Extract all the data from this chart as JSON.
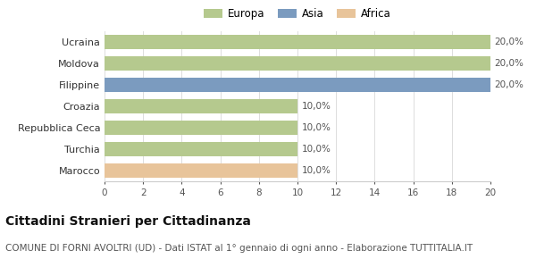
{
  "categories": [
    "Ucraina",
    "Moldova",
    "Filippine",
    "Croazia",
    "Repubblica Ceca",
    "Turchia",
    "Marocco"
  ],
  "values": [
    20,
    20,
    20,
    10,
    10,
    10,
    10
  ],
  "colors": [
    "#b5c98e",
    "#b5c98e",
    "#7b9bbf",
    "#b5c98e",
    "#b5c98e",
    "#b5c98e",
    "#e8c49a"
  ],
  "labels": [
    "20,0%",
    "20,0%",
    "20,0%",
    "10,0%",
    "10,0%",
    "10,0%",
    "10,0%"
  ],
  "legend": [
    {
      "label": "Europa",
      "color": "#b5c98e"
    },
    {
      "label": "Asia",
      "color": "#7b9bbf"
    },
    {
      "label": "Africa",
      "color": "#e8c49a"
    }
  ],
  "xlim": [
    0,
    20
  ],
  "xticks": [
    0,
    2,
    4,
    6,
    8,
    10,
    12,
    14,
    16,
    18,
    20
  ],
  "title": "Cittadini Stranieri per Cittadinanza",
  "subtitle": "COMUNE DI FORNI AVOLTRI (UD) - Dati ISTAT al 1° gennaio di ogni anno - Elaborazione TUTTITALIA.IT",
  "title_fontsize": 10,
  "subtitle_fontsize": 7.5,
  "background_color": "#ffffff",
  "grid_color": "#dddddd"
}
